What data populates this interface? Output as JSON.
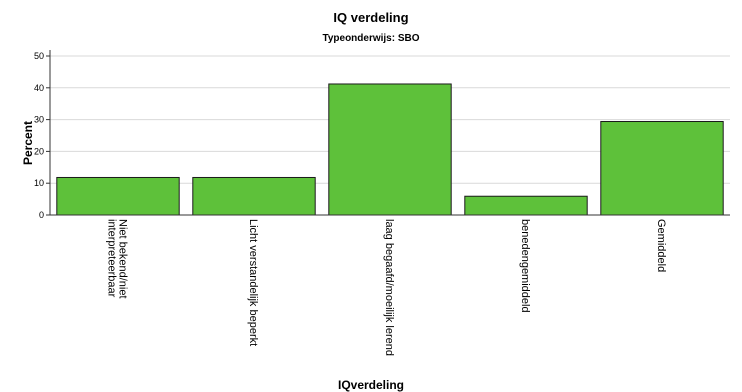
{
  "chart_data": {
    "type": "bar",
    "title": "IQ verdeling",
    "subtitle": "Typeonderwijs: SBO",
    "xlabel": "IQverdeling",
    "ylabel": "Percent",
    "categories": [
      "Niet bekend/niet interpreteerbaar",
      "Licht verstandelijk beperkt",
      "laag begaafd/moeilijk lerend",
      "benedengemiddeld",
      "Gemiddeld"
    ],
    "category_lines": [
      [
        "Niet bekend/niet",
        "interpreteerbaar"
      ],
      [
        "Licht verstandelijk beperkt"
      ],
      [
        "laag begaafd/moeilijk lerend"
      ],
      [
        "benedengemiddeld"
      ],
      [
        "Gemiddeld"
      ]
    ],
    "values": [
      11.8,
      11.8,
      41.2,
      5.9,
      29.4
    ],
    "ylim": [
      0,
      50
    ],
    "yticks": [
      "0",
      "10",
      "20",
      "30",
      "40",
      "50"
    ],
    "grid": true,
    "colors": {
      "bar_fill": "#5ec13a",
      "bar_stroke": "#1a1a1a",
      "grid": "#d9d9d9"
    }
  }
}
